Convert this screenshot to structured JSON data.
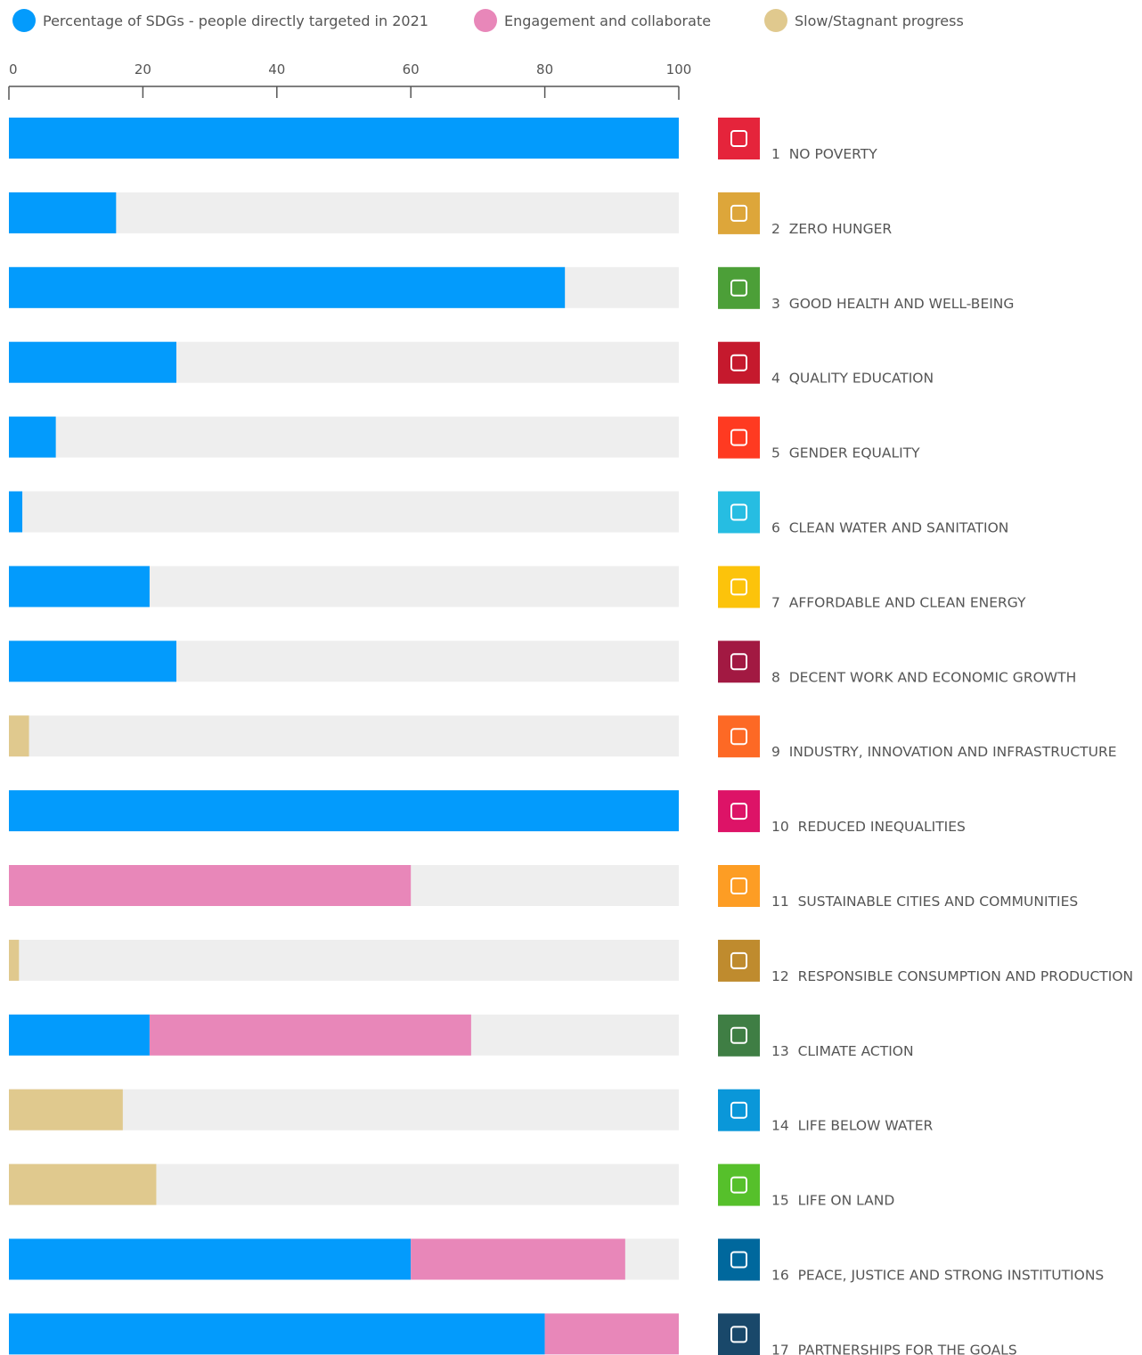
{
  "chart_data": {
    "type": "stacked_bar_horizontal",
    "categories": [
      "1  NO POVERTY",
      "2  ZERO HUNGER",
      "3  GOOD HEALTH AND WELL-BEING",
      "4  QUALITY EDUCATION",
      "5  GENDER EQUALITY",
      "6  CLEAN WATER AND SANITATION",
      "7  AFFORDABLE AND CLEAN ENERGY",
      "8  DECENT WORK AND ECONOMIC GROWTH",
      "9  INDUSTRY, INNOVATION AND INFRASTRUCTURE",
      "10  REDUCED INEQUALITIES",
      "11  SUSTAINABLE CITIES AND COMMUNITIES",
      "12  RESPONSIBLE CONSUMPTION AND PRODUCTION",
      "13  CLIMATE ACTION",
      "14  LIFE BELOW WATER",
      "15  LIFE ON LAND",
      "16  PEACE, JUSTICE AND STRONG INSTITUTIONS",
      "17  PARTNERSHIPS FOR THE GOALS"
    ],
    "series": [
      {
        "name": "Percentage of SDGs - people directly targeted in 2021",
        "color": "#039bfc",
        "values": [
          100,
          16,
          83,
          25,
          7,
          2,
          21,
          25,
          null,
          100,
          null,
          null,
          21,
          null,
          null,
          60,
          80
        ]
      },
      {
        "name": "Engagement and collaborate",
        "color": "#e887b9",
        "values": [
          null,
          null,
          null,
          null,
          null,
          null,
          null,
          null,
          null,
          null,
          60,
          null,
          48,
          null,
          null,
          32,
          20
        ]
      },
      {
        "name": "Slow/Stagnant progress",
        "color": "#e0c98e",
        "values": [
          null,
          null,
          null,
          null,
          null,
          null,
          null,
          null,
          3,
          null,
          null,
          1.5,
          null,
          17,
          22,
          null,
          null
        ]
      }
    ],
    "xlim": [
      0,
      100
    ],
    "xticks": [
      0,
      20,
      40,
      60,
      80,
      100
    ],
    "legend": "top"
  }
}
